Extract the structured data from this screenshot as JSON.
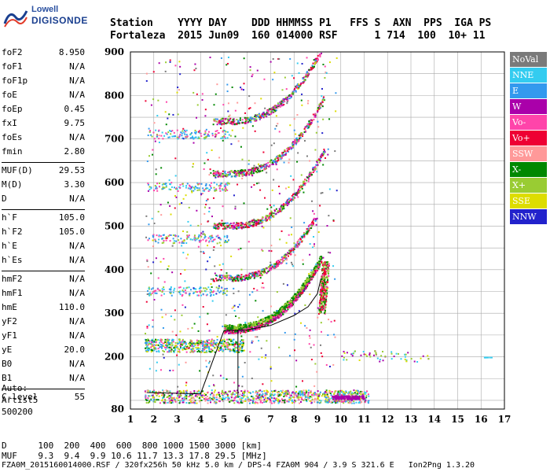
{
  "logo": {
    "line1": "Lowell",
    "line2": "DIGISONDE"
  },
  "header": {
    "line1": "Station    YYYY DAY    DDD HHMMSS P1   FFS S  AXN  PPS  IGA PS",
    "line2": "Fortaleza  2015 Jun09  160 014000 RSF      1 714  100  10+ 11"
  },
  "params": [
    [
      {
        "label": "foF2",
        "value": "8.950"
      },
      {
        "label": "foF1",
        "value": "N/A"
      },
      {
        "label": "foF1p",
        "value": "N/A"
      },
      {
        "label": "foE",
        "value": "N/A"
      },
      {
        "label": "foEp",
        "value": "0.45"
      },
      {
        "label": "fxI",
        "value": "9.75"
      },
      {
        "label": "foEs",
        "value": "N/A"
      },
      {
        "label": "fmin",
        "value": "2.80"
      }
    ],
    [
      {
        "label": "MUF(D)",
        "value": "29.53"
      },
      {
        "label": "M(D)",
        "value": "3.30"
      },
      {
        "label": "D",
        "value": "N/A"
      }
    ],
    [
      {
        "label": "h`F",
        "value": "105.0"
      },
      {
        "label": "h`F2",
        "value": "105.0"
      },
      {
        "label": "h`E",
        "value": "N/A"
      },
      {
        "label": "h`Es",
        "value": "N/A"
      }
    ],
    [
      {
        "label": "hmF2",
        "value": "N/A"
      },
      {
        "label": "hmF1",
        "value": "N/A"
      },
      {
        "label": "hmE",
        "value": "110.0"
      },
      {
        "label": "yF2",
        "value": "N/A"
      },
      {
        "label": "yF1",
        "value": "N/A"
      },
      {
        "label": "yE",
        "value": "20.0"
      },
      {
        "label": "B0",
        "value": "N/A"
      },
      {
        "label": "B1",
        "value": "N/A"
      }
    ],
    [
      {
        "label": "C-level",
        "value": "55"
      }
    ]
  ],
  "auto": {
    "line1": "Auto:",
    "line2": "Artist5",
    "line3": "500200"
  },
  "legend": [
    {
      "label": "NoVal",
      "color": "#7a7a7a"
    },
    {
      "label": "NNE",
      "color": "#33ccf0"
    },
    {
      "label": "E",
      "color": "#3399ee"
    },
    {
      "label": "W",
      "color": "#aa00aa"
    },
    {
      "label": "Vo-",
      "color": "#ff44aa"
    },
    {
      "label": "Vo+",
      "color": "#ee0033"
    },
    {
      "label": "SSW",
      "color": "#ff9999"
    },
    {
      "label": "X-",
      "color": "#008800"
    },
    {
      "label": "X+",
      "color": "#99cc33"
    },
    {
      "label": "SSE",
      "color": "#dddd00"
    },
    {
      "label": "NNW",
      "color": "#2222cc"
    }
  ],
  "footer": {
    "line1": "D      100  200  400  600  800 1000 1500 3000 [km]",
    "line2": "MUF    9.3  9.4  9.9 10.6 11.7 13.3 17.8 29.5 [MHz]",
    "line3": "FZA0M_2015160014000.RSF / 320fx256h 50 kHz 5.0 km / DPS-4 FZA0M 904 / 3.9 S 321.6 E   Ion2Png 1.3.20"
  },
  "chart_data": {
    "type": "scatter",
    "x_ticks": [
      "1",
      "2",
      "3",
      "4",
      "5",
      "6",
      "7",
      "8",
      "9",
      "10",
      "11",
      "12",
      "13",
      "14",
      "15",
      "16",
      "17"
    ],
    "y_ticks": [
      "80",
      "200",
      "300",
      "400",
      "500",
      "600",
      "700",
      "800",
      "900"
    ],
    "xlim": [
      1,
      17
    ],
    "ylim": [
      80,
      900
    ],
    "grid": true,
    "legend_position": "right",
    "trace": {
      "x": [
        1.7,
        4.0,
        5.0,
        6.0,
        7.0,
        8.0,
        8.6,
        9.0,
        9.15
      ],
      "y": [
        118,
        115,
        260,
        262,
        272,
        295,
        315,
        345,
        380
      ]
    }
  }
}
